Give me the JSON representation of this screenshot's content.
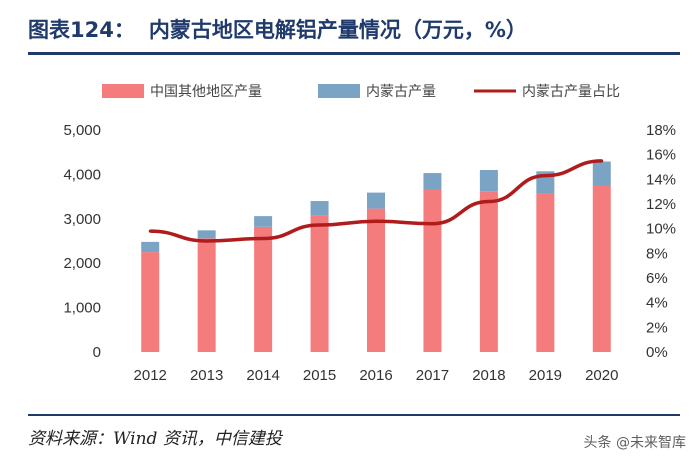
{
  "header": {
    "figure_label": "图表124：",
    "title": "内蒙古地区电解铝产量情况（万元，%）"
  },
  "footer": {
    "source": "资料来源：Wind 资讯，中信建投",
    "watermark": "头条 @未来智库"
  },
  "colors": {
    "other_bar": "#f47c7c",
    "inner_mongolia_bar": "#7ba3c4",
    "share_line": "#b01b1b",
    "title": "#1f3a6b"
  },
  "chart_data": {
    "type": "bar",
    "stacked": true,
    "categories": [
      "2012",
      "2013",
      "2014",
      "2015",
      "2016",
      "2017",
      "2018",
      "2019",
      "2020"
    ],
    "series": [
      {
        "name": "中国其他地区产量",
        "axis": "left",
        "values": [
          2250,
          2560,
          2820,
          3070,
          3230,
          3650,
          3620,
          3580,
          3750
        ]
      },
      {
        "name": "内蒙古产量",
        "axis": "left",
        "values": [
          230,
          180,
          240,
          330,
          360,
          380,
          480,
          490,
          540
        ]
      },
      {
        "name": "内蒙古产量占比",
        "type": "line",
        "axis": "right",
        "values": [
          9.8,
          9.0,
          9.2,
          10.3,
          10.6,
          10.4,
          12.2,
          14.3,
          15.5
        ]
      }
    ],
    "y_left": {
      "min": 0,
      "max": 5000,
      "ticks": [
        "0",
        "1,000",
        "2,000",
        "3,000",
        "4,000",
        "5,000"
      ]
    },
    "y_right": {
      "min": 0,
      "max": 18,
      "ticks": [
        "0%",
        "2%",
        "4%",
        "6%",
        "8%",
        "10%",
        "12%",
        "14%",
        "16%",
        "18%"
      ]
    },
    "legend_position": "top"
  }
}
